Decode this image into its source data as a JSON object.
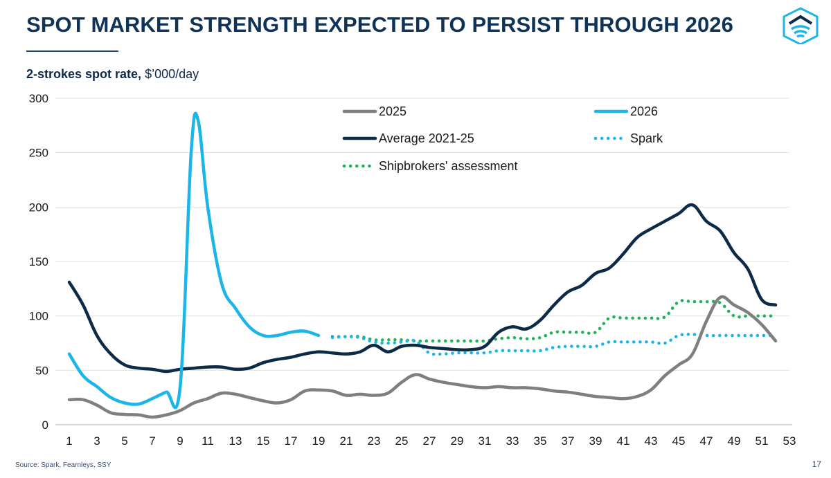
{
  "title": "SPOT MARKET STRENGTH EXPECTED TO PERSIST THROUGH 2026",
  "subtitle_bold": "2-strokes spot rate,",
  "subtitle_rest": " $’000/day",
  "source": "Source: Spark, Fearnleys, SSY",
  "page_number": "17",
  "logo_icon": "ship-house-icon",
  "colors": {
    "title": "#0f3259",
    "series_2025": "#7f7f7f",
    "series_2026": "#1cb5ea",
    "series_average": "#0d2a47",
    "series_spark": "#1cb5ea",
    "series_shipbrokers": "#1eb356",
    "logo": "#1cb5ea"
  },
  "chart_data": {
    "type": "line",
    "title": "SPOT MARKET STRENGTH EXPECTED TO PERSIST THROUGH 2026",
    "ylabel": "2-strokes spot rate, $’000/day",
    "xlabel": "",
    "xlim": [
      1,
      53
    ],
    "ylim": [
      0,
      300
    ],
    "x_ticks": [
      1,
      3,
      5,
      7,
      9,
      11,
      13,
      15,
      17,
      19,
      21,
      23,
      25,
      27,
      29,
      31,
      33,
      35,
      37,
      39,
      41,
      43,
      45,
      47,
      49,
      51,
      53
    ],
    "y_ticks": [
      0,
      50,
      100,
      150,
      200,
      250,
      300
    ],
    "grid": "horizontal",
    "legend_position": "top-right",
    "series": [
      {
        "name": "2025",
        "style": "solid",
        "color": "#7f7f7f",
        "points": [
          [
            1,
            23
          ],
          [
            2,
            23
          ],
          [
            3,
            18
          ],
          [
            4,
            11
          ],
          [
            5,
            9.5
          ],
          [
            6,
            9
          ],
          [
            7,
            7
          ],
          [
            8,
            9
          ],
          [
            9,
            13
          ],
          [
            10,
            20
          ],
          [
            11,
            24
          ],
          [
            12,
            29
          ],
          [
            13,
            28
          ],
          [
            14,
            25
          ],
          [
            15,
            22
          ],
          [
            16,
            20
          ],
          [
            17,
            23
          ],
          [
            18,
            31
          ],
          [
            19,
            32
          ],
          [
            20,
            31
          ],
          [
            21,
            27
          ],
          [
            22,
            28
          ],
          [
            23,
            27
          ],
          [
            24,
            29
          ],
          [
            25,
            39
          ],
          [
            26,
            46
          ],
          [
            27,
            42
          ],
          [
            28,
            39
          ],
          [
            29,
            37
          ],
          [
            30,
            35
          ],
          [
            31,
            34
          ],
          [
            32,
            35
          ],
          [
            33,
            34
          ],
          [
            34,
            34
          ],
          [
            35,
            33
          ],
          [
            36,
            31
          ],
          [
            37,
            30
          ],
          [
            38,
            28
          ],
          [
            39,
            26
          ],
          [
            40,
            25
          ],
          [
            41,
            24
          ],
          [
            42,
            26
          ],
          [
            43,
            32
          ],
          [
            44,
            45
          ],
          [
            45,
            55
          ],
          [
            46,
            65
          ],
          [
            47,
            95
          ],
          [
            48,
            117
          ],
          [
            49,
            110
          ],
          [
            50,
            103
          ],
          [
            51,
            92
          ],
          [
            52,
            77
          ]
        ]
      },
      {
        "name": "2026",
        "style": "solid",
        "color": "#1cb5ea",
        "points": [
          [
            1,
            65
          ],
          [
            2,
            45
          ],
          [
            3,
            35
          ],
          [
            4,
            25
          ],
          [
            5,
            20
          ],
          [
            6,
            19
          ],
          [
            7,
            24
          ],
          [
            8,
            30
          ],
          [
            9,
            34
          ],
          [
            9.8,
            250
          ],
          [
            10.3,
            280
          ],
          [
            11,
            200
          ],
          [
            12,
            130
          ],
          [
            13,
            107
          ],
          [
            14,
            90
          ],
          [
            15,
            82
          ],
          [
            16,
            82
          ],
          [
            17,
            85
          ],
          [
            18,
            86
          ],
          [
            19,
            82
          ]
        ]
      },
      {
        "name": "Average 2021-25",
        "style": "solid",
        "color": "#0d2a47",
        "points": [
          [
            1,
            131
          ],
          [
            2,
            110
          ],
          [
            3,
            82
          ],
          [
            4,
            65
          ],
          [
            5,
            55
          ],
          [
            6,
            52
          ],
          [
            7,
            51
          ],
          [
            8,
            49
          ],
          [
            9,
            51
          ],
          [
            10,
            52
          ],
          [
            11,
            53
          ],
          [
            12,
            53
          ],
          [
            13,
            51
          ],
          [
            14,
            52
          ],
          [
            15,
            57
          ],
          [
            16,
            60
          ],
          [
            17,
            62
          ],
          [
            18,
            65
          ],
          [
            19,
            67
          ],
          [
            20,
            66
          ],
          [
            21,
            65
          ],
          [
            22,
            67
          ],
          [
            23,
            73
          ],
          [
            24,
            67
          ],
          [
            25,
            72
          ],
          [
            26,
            73
          ],
          [
            27,
            71
          ],
          [
            28,
            70
          ],
          [
            29,
            69
          ],
          [
            30,
            69
          ],
          [
            31,
            72
          ],
          [
            32,
            85
          ],
          [
            33,
            90
          ],
          [
            34,
            88
          ],
          [
            35,
            96
          ],
          [
            36,
            110
          ],
          [
            37,
            122
          ],
          [
            38,
            128
          ],
          [
            39,
            139
          ],
          [
            40,
            144
          ],
          [
            41,
            157
          ],
          [
            42,
            172
          ],
          [
            43,
            180
          ],
          [
            44,
            187
          ],
          [
            45,
            194
          ],
          [
            46,
            202
          ],
          [
            47,
            187
          ],
          [
            48,
            178
          ],
          [
            49,
            158
          ],
          [
            50,
            143
          ],
          [
            51,
            115
          ],
          [
            52,
            110
          ]
        ]
      },
      {
        "name": "Spark",
        "style": "dotted",
        "color": "#1cb5ea",
        "points": [
          [
            20,
            80
          ],
          [
            21,
            81
          ],
          [
            22,
            80
          ],
          [
            23,
            76
          ],
          [
            24,
            75
          ],
          [
            25,
            76
          ],
          [
            26,
            77
          ],
          [
            27,
            66
          ],
          [
            28,
            65
          ],
          [
            29,
            66
          ],
          [
            30,
            66
          ],
          [
            31,
            66
          ],
          [
            32,
            68
          ],
          [
            33,
            68
          ],
          [
            34,
            68
          ],
          [
            35,
            68
          ],
          [
            36,
            71
          ],
          [
            37,
            72
          ],
          [
            38,
            72
          ],
          [
            39,
            72
          ],
          [
            40,
            76
          ],
          [
            41,
            76
          ],
          [
            42,
            76
          ],
          [
            43,
            76
          ],
          [
            44,
            75
          ],
          [
            45,
            82
          ],
          [
            46,
            83
          ],
          [
            47,
            82
          ],
          [
            48,
            82
          ],
          [
            49,
            82
          ],
          [
            50,
            82
          ],
          [
            51,
            82
          ],
          [
            52,
            82
          ]
        ]
      },
      {
        "name": "Shipbrokers' assessment",
        "style": "dotted",
        "color": "#1eb356",
        "points": [
          [
            20,
            81
          ],
          [
            21,
            81
          ],
          [
            22,
            81
          ],
          [
            23,
            78
          ],
          [
            24,
            78
          ],
          [
            25,
            78
          ],
          [
            26,
            77
          ],
          [
            27,
            77
          ],
          [
            28,
            77
          ],
          [
            29,
            77
          ],
          [
            30,
            77
          ],
          [
            31,
            77
          ],
          [
            32,
            79
          ],
          [
            33,
            80
          ],
          [
            34,
            79
          ],
          [
            35,
            80
          ],
          [
            36,
            85
          ],
          [
            37,
            85
          ],
          [
            38,
            85
          ],
          [
            39,
            85
          ],
          [
            40,
            98
          ],
          [
            41,
            98
          ],
          [
            42,
            98
          ],
          [
            43,
            98
          ],
          [
            44,
            99
          ],
          [
            45,
            113
          ],
          [
            46,
            113
          ],
          [
            47,
            113
          ],
          [
            48,
            112
          ],
          [
            49,
            100
          ],
          [
            50,
            100
          ],
          [
            51,
            100
          ],
          [
            52,
            100
          ]
        ]
      }
    ]
  }
}
